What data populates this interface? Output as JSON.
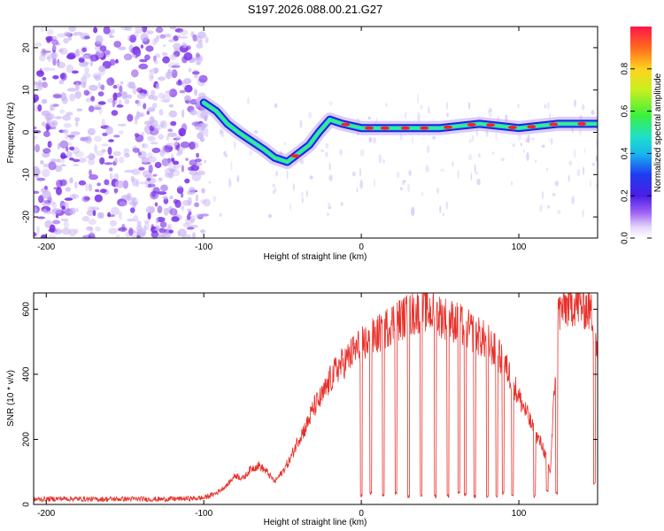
{
  "figure_title": "S197.2026.088.00.21.G27",
  "colors": {
    "snr_line": "#e8302a",
    "spectral_core": "#ff2020",
    "spectral_mid": "#18d8e0",
    "spectral_edge": "#2020e0",
    "noise": "#7a2fe8",
    "noise_faint": "#c9b3f5"
  },
  "chart_data": [
    {
      "type": "heatmap",
      "name": "spectrogram",
      "xlabel": "Height of straight line (km)",
      "ylabel": "Frequency (Hz)",
      "xlim": [
        -208,
        150
      ],
      "ylim": [
        -25,
        25
      ],
      "xticks": [
        -200,
        -100,
        0,
        100
      ],
      "yticks": [
        -20,
        -10,
        0,
        10,
        20
      ],
      "colorbar": {
        "label": "Normalized spectral amplitude",
        "range": [
          0,
          1
        ],
        "ticks": [
          0.0,
          0.2,
          0.4,
          0.6,
          0.8
        ]
      },
      "signal_track": [
        {
          "x": -100,
          "y": 7
        },
        {
          "x": -92,
          "y": 5
        },
        {
          "x": -85,
          "y": 2
        },
        {
          "x": -78,
          "y": 0
        },
        {
          "x": -70,
          "y": -2
        },
        {
          "x": -62,
          "y": -4
        },
        {
          "x": -55,
          "y": -6
        },
        {
          "x": -47,
          "y": -7
        },
        {
          "x": -40,
          "y": -5
        },
        {
          "x": -33,
          "y": -3
        },
        {
          "x": -27,
          "y": 0
        },
        {
          "x": -20,
          "y": 3
        },
        {
          "x": -12,
          "y": 2
        },
        {
          "x": 0,
          "y": 1
        },
        {
          "x": 25,
          "y": 1
        },
        {
          "x": 50,
          "y": 1
        },
        {
          "x": 75,
          "y": 2
        },
        {
          "x": 100,
          "y": 1
        },
        {
          "x": 125,
          "y": 2
        },
        {
          "x": 150,
          "y": 2
        }
      ],
      "noise_region_x": [
        -208,
        -98
      ]
    },
    {
      "type": "line",
      "name": "snr",
      "xlabel": "Height of straight line (km)",
      "ylabel": "SNR (10 * v/v)",
      "xlim": [
        -208,
        150
      ],
      "ylim": [
        0,
        650
      ],
      "xticks": [
        -200,
        -100,
        0,
        100
      ],
      "yticks": [
        0,
        200,
        400,
        600
      ],
      "series": [
        {
          "name": "SNR",
          "x": [
            -208,
            -190,
            -170,
            -150,
            -130,
            -110,
            -100,
            -92,
            -85,
            -80,
            -75,
            -70,
            -65,
            -60,
            -55,
            -50,
            -45,
            -40,
            -35,
            -30,
            -25,
            -20,
            -15,
            -10,
            -5,
            0,
            10,
            20,
            30,
            40,
            50,
            60,
            70,
            80,
            90,
            95,
            100,
            105,
            110,
            115,
            120,
            125,
            130,
            135,
            140,
            145,
            148,
            150
          ],
          "values": [
            15,
            18,
            16,
            17,
            16,
            18,
            20,
            35,
            60,
            90,
            80,
            110,
            120,
            100,
            70,
            100,
            140,
            200,
            240,
            300,
            330,
            380,
            420,
            440,
            470,
            490,
            520,
            560,
            580,
            600,
            580,
            560,
            530,
            500,
            440,
            390,
            330,
            280,
            220,
            180,
            100,
            590,
            610,
            620,
            610,
            600,
            560,
            420
          ]
        }
      ],
      "dropouts": [
        {
          "x": 0,
          "floor": 20
        },
        {
          "x": 6,
          "floor": 30
        },
        {
          "x": 14,
          "floor": 25
        },
        {
          "x": 22,
          "floor": 30
        },
        {
          "x": 30,
          "floor": 20
        },
        {
          "x": 38,
          "floor": 25
        },
        {
          "x": 47,
          "floor": 20
        },
        {
          "x": 55,
          "floor": 20
        },
        {
          "x": 62,
          "floor": 30
        },
        {
          "x": 66,
          "floor": 25
        },
        {
          "x": 72,
          "floor": 20
        },
        {
          "x": 80,
          "floor": 20
        },
        {
          "x": 86,
          "floor": 20
        },
        {
          "x": 90,
          "floor": 30
        },
        {
          "x": 96,
          "floor": 25
        },
        {
          "x": 110,
          "floor": 20
        },
        {
          "x": 118,
          "floor": 35
        },
        {
          "x": 124,
          "floor": 30
        },
        {
          "x": 148,
          "floor": 60
        }
      ]
    }
  ]
}
